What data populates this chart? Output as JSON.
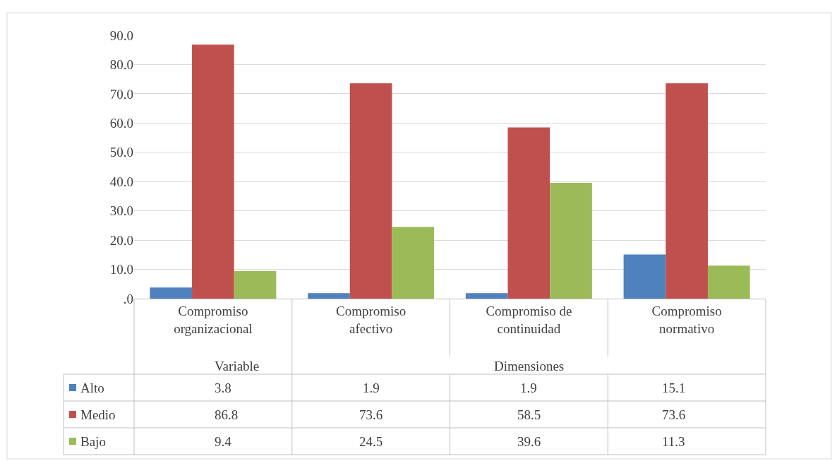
{
  "chart_data": {
    "type": "bar",
    "categories": [
      "Compromiso organizacional",
      "Compromiso afectivo",
      "Compromiso de continuidad",
      "Compromiso normativo"
    ],
    "series": [
      {
        "name": "Alto",
        "color": "#4f81bd",
        "values": [
          3.8,
          1.9,
          1.9,
          15.1
        ]
      },
      {
        "name": "Medio",
        "color": "#c0504d",
        "values": [
          86.8,
          73.6,
          58.5,
          73.6
        ]
      },
      {
        "name": "Bajo",
        "color": "#9bbb59",
        "values": [
          9.4,
          24.5,
          39.6,
          11.3
        ]
      }
    ],
    "ylim": [
      0,
      90
    ],
    "yticks": [
      {
        "value": 0,
        "label": ".0"
      },
      {
        "value": 10,
        "label": "10.0"
      },
      {
        "value": 20,
        "label": "20.0"
      },
      {
        "value": 30,
        "label": "30.0"
      },
      {
        "value": 40,
        "label": "40.0"
      },
      {
        "value": 50,
        "label": "50.0"
      },
      {
        "value": 60,
        "label": "60.0"
      },
      {
        "value": 70,
        "label": "70.0"
      },
      {
        "value": 80,
        "label": "80.0"
      },
      {
        "value": 90,
        "label": "90.0"
      }
    ],
    "grid": "y",
    "data_labels": true,
    "legend": "bottom left",
    "annotations": [
      "Variable",
      "Dimensiones"
    ]
  }
}
